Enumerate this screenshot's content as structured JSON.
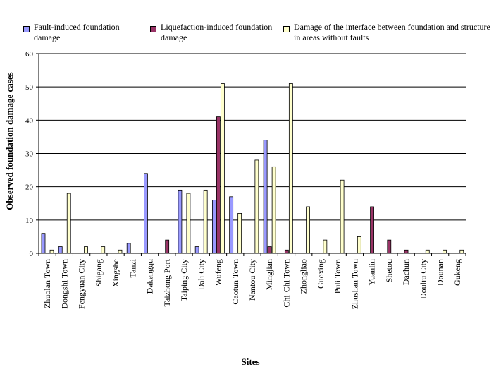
{
  "chart_data": {
    "type": "bar",
    "title": "",
    "xlabel": "Sites",
    "ylabel": "Observed foundation damage cases",
    "ylim": [
      0,
      60
    ],
    "yticks": [
      0,
      10,
      20,
      30,
      40,
      50,
      60
    ],
    "grid": true,
    "legend_position": "top",
    "categories": [
      "Zhuolan Town",
      "Dongshi Town",
      "Fengyuan City",
      "Shigang",
      "Xingshe",
      "Tanzi",
      "Dakengqu",
      "Taizhong Port",
      "Taiping City",
      "Dali City",
      "Wufeng",
      "Caotun Town",
      "Nantou City",
      "Mingjian",
      "Chi-Chi Town",
      "Zhongliao",
      "Guoxing",
      "Puli Town",
      "Zhushan Town",
      "Yuanlin",
      "Shetou",
      "Dachun",
      "Douliu City",
      "Dounan",
      "Gukeng"
    ],
    "series": [
      {
        "name": "Fault-induced foundation damage",
        "color": "#9999ff",
        "values": [
          6,
          2,
          0,
          0,
          0,
          3,
          24,
          0,
          19,
          2,
          16,
          17,
          0,
          34,
          0,
          0,
          0,
          0,
          0,
          0,
          0,
          0,
          0,
          0,
          0
        ]
      },
      {
        "name": "Liquefaction-induced foundation damage",
        "color": "#993366",
        "values": [
          0,
          0,
          0,
          0,
          0,
          0,
          0,
          4,
          0,
          0,
          41,
          0,
          0,
          2,
          1,
          0,
          0,
          0,
          0,
          14,
          4,
          1,
          0,
          0,
          0
        ]
      },
      {
        "name": "Damage of the interface between foundation and structure in areas without faults",
        "color": "#ffffcc",
        "values": [
          1,
          18,
          2,
          2,
          1,
          0,
          0,
          0,
          18,
          19,
          51,
          12,
          28,
          26,
          51,
          14,
          4,
          22,
          5,
          0,
          0,
          0,
          1,
          1,
          1
        ]
      }
    ]
  },
  "legend": {
    "item1": "Fault-induced foundation damage",
    "item2": "Liquefaction-induced foundation damage",
    "item3": "Damage of the interface between foundation and structure in areas without faults"
  }
}
